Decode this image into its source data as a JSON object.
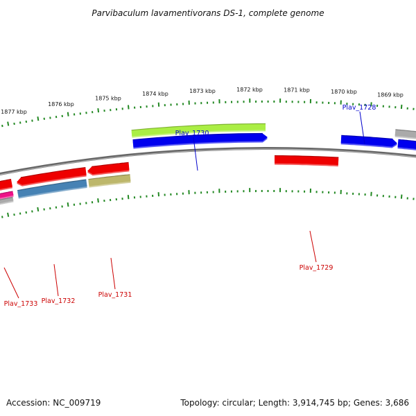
{
  "title": "Parvibaculum lavamentivorans DS-1, complete genome",
  "footer": {
    "accession": "Accession: NC_009719",
    "summary": "Topology: circular; Length: 3,914,745 bp; Genes: 3,686"
  },
  "scale": {
    "unit": "kbp",
    "labels": [
      "1877 kbp",
      "1876 kbp",
      "1875 kbp",
      "1874 kbp",
      "1873 kbp",
      "1872 kbp",
      "1871 kbp",
      "1870 kbp",
      "1869 kbp"
    ]
  },
  "genes": [
    {
      "label": "Plav_1728",
      "strand": "forward",
      "color": "#0000ee",
      "label_color": "#0000cc"
    },
    {
      "label": "Plav_1729",
      "strand": "reverse",
      "color": "#ee0000",
      "label_color": "#cc0000"
    },
    {
      "label": "Plav_1730",
      "strand": "forward",
      "color": "#0000ee",
      "label_color": "#0000cc"
    },
    {
      "label": "Plav_1731",
      "strand": "reverse",
      "color": "#ee0000",
      "label_color": "#cc0000"
    },
    {
      "label": "Plav_1732",
      "strand": "reverse",
      "color": "#ee0000",
      "label_color": "#cc0000"
    },
    {
      "label": "Plav_1733",
      "strand": "reverse",
      "color": "#ee0000",
      "label_color": "#cc0000"
    }
  ],
  "feature_colors": {
    "backbone": "#808080",
    "tick": "#228822",
    "cds_forward": "#0000ee",
    "cds_reverse": "#ee0000",
    "green_feature": "#aaee44",
    "steel_feature": "#4682b4",
    "khaki_feature": "#bdb76b",
    "pink_feature": "#ee1188",
    "grey_feature": "#aaaaaa"
  }
}
